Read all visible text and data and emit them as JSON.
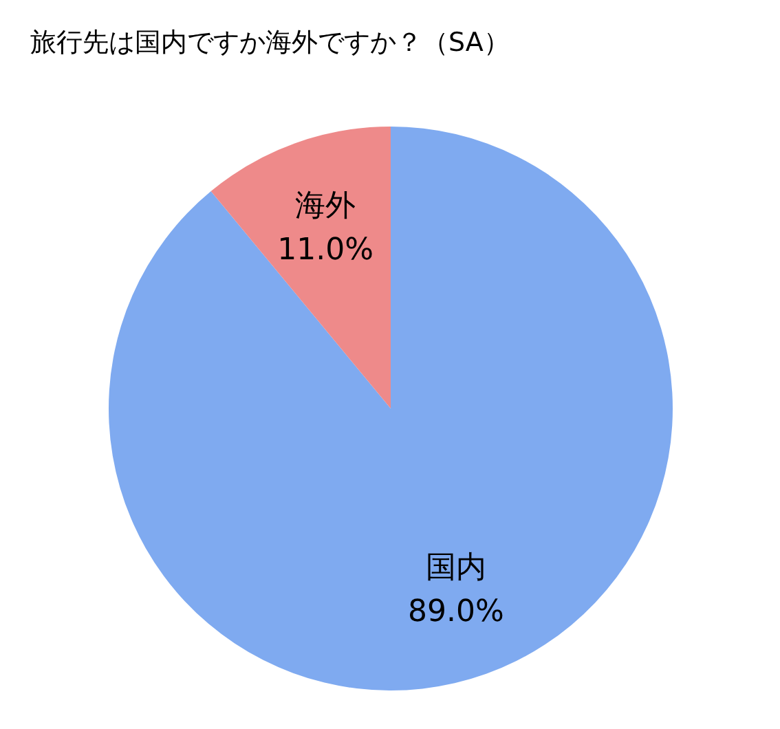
{
  "chart_data": {
    "type": "pie",
    "title": "旅行先は国内ですか海外ですか？（SA）",
    "categories": [
      "国内",
      "海外"
    ],
    "values": [
      89.0,
      11.0
    ],
    "value_labels": [
      "89.0%",
      "11.0%"
    ],
    "colors": [
      "#7faaf0",
      "#ee8a8a"
    ]
  }
}
